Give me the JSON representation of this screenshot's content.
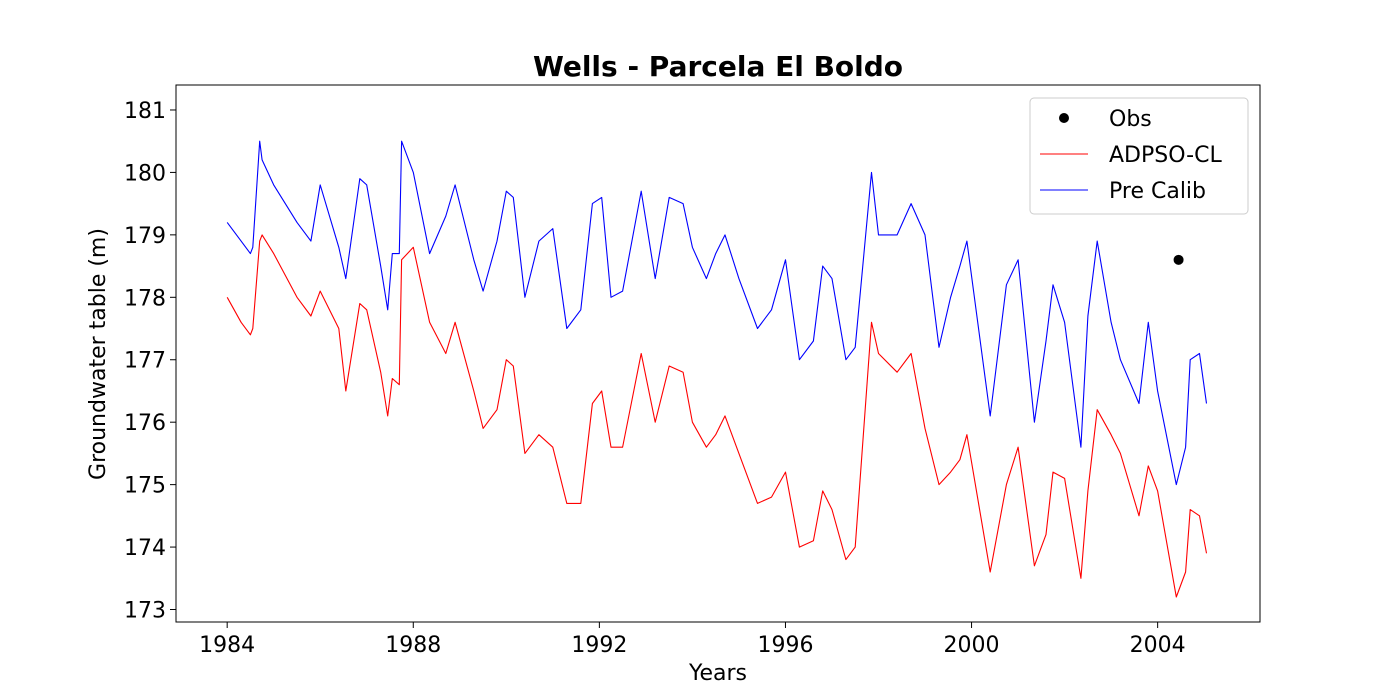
{
  "chart_data": {
    "type": "line",
    "title": "Wells - Parcela El Boldo",
    "xlabel": "Years",
    "ylabel": "Groundwater table (m)",
    "xlim": [
      1982.9,
      2006.2
    ],
    "ylim": [
      172.8,
      181.4
    ],
    "x_ticks": [
      1984,
      1988,
      1992,
      1996,
      2000,
      2004
    ],
    "y_ticks": [
      173,
      174,
      175,
      176,
      177,
      178,
      179,
      180,
      181
    ],
    "grid": false,
    "legend": {
      "position": "top-right"
    },
    "series": [
      {
        "name": "Obs",
        "type": "scatter",
        "color": "#000000",
        "x": [
          2004.45
        ],
        "y": [
          178.6
        ]
      },
      {
        "name": "ADPSO-CL",
        "type": "line",
        "color": "#ff0000",
        "x": [
          1984.0,
          1984.3,
          1984.5,
          1984.55,
          1984.7,
          1984.75,
          1985.0,
          1985.5,
          1985.8,
          1986.0,
          1986.4,
          1986.55,
          1986.85,
          1987.0,
          1987.3,
          1987.45,
          1987.55,
          1987.7,
          1987.75,
          1988.0,
          1988.35,
          1988.7,
          1988.9,
          1989.3,
          1989.5,
          1989.8,
          1990.0,
          1990.15,
          1990.4,
          1990.7,
          1991.0,
          1991.3,
          1991.6,
          1991.85,
          1992.05,
          1992.25,
          1992.5,
          1992.9,
          1993.2,
          1993.5,
          1993.8,
          1994.0,
          1994.3,
          1994.5,
          1994.7,
          1995.0,
          1995.4,
          1995.7,
          1996.0,
          1996.3,
          1996.6,
          1996.8,
          1997.0,
          1997.3,
          1997.5,
          1997.85,
          1998.0,
          1998.4,
          1998.7,
          1999.0,
          1999.3,
          1999.55,
          1999.75,
          1999.9,
          2000.4,
          2000.75,
          2001.0,
          2001.35,
          2001.6,
          2001.75,
          2002.0,
          2002.35,
          2002.5,
          2002.7,
          2003.0,
          2003.2,
          2003.6,
          2003.8,
          2004.0,
          2004.4,
          2004.6,
          2004.7,
          2004.9,
          2005.05
        ],
        "y": [
          178.0,
          177.6,
          177.4,
          177.5,
          178.9,
          179.0,
          178.7,
          178.0,
          177.7,
          178.1,
          177.5,
          176.5,
          177.9,
          177.8,
          176.8,
          176.1,
          176.7,
          176.6,
          178.6,
          178.8,
          177.6,
          177.1,
          177.6,
          176.5,
          175.9,
          176.2,
          177.0,
          176.9,
          175.5,
          175.8,
          175.6,
          174.7,
          174.7,
          176.3,
          176.5,
          175.6,
          175.6,
          177.1,
          176.0,
          176.9,
          176.8,
          176.0,
          175.6,
          175.8,
          176.1,
          175.5,
          174.7,
          174.8,
          175.2,
          174.0,
          174.1,
          174.9,
          174.6,
          173.8,
          174.0,
          177.6,
          177.1,
          176.8,
          177.1,
          175.9,
          175.0,
          175.2,
          175.4,
          175.8,
          173.6,
          175.0,
          175.6,
          173.7,
          174.2,
          175.2,
          175.1,
          173.5,
          174.9,
          176.2,
          175.8,
          175.5,
          174.5,
          175.3,
          174.9,
          173.2,
          173.6,
          174.6,
          174.5,
          173.9
        ]
      },
      {
        "name": "Pre Calib",
        "type": "line",
        "color": "#0000ff",
        "x": [
          1984.0,
          1984.3,
          1984.5,
          1984.55,
          1984.7,
          1984.75,
          1985.0,
          1985.5,
          1985.8,
          1986.0,
          1986.4,
          1986.55,
          1986.85,
          1987.0,
          1987.3,
          1987.45,
          1987.55,
          1987.7,
          1987.75,
          1988.0,
          1988.35,
          1988.7,
          1988.9,
          1989.3,
          1989.5,
          1989.8,
          1990.0,
          1990.15,
          1990.4,
          1990.7,
          1991.0,
          1991.3,
          1991.6,
          1991.85,
          1992.05,
          1992.25,
          1992.5,
          1992.9,
          1993.2,
          1993.5,
          1993.8,
          1994.0,
          1994.3,
          1994.5,
          1994.7,
          1995.0,
          1995.4,
          1995.7,
          1996.0,
          1996.3,
          1996.6,
          1996.8,
          1997.0,
          1997.3,
          1997.5,
          1997.85,
          1998.0,
          1998.4,
          1998.7,
          1999.0,
          1999.3,
          1999.55,
          1999.75,
          1999.9,
          2000.4,
          2000.75,
          2001.0,
          2001.35,
          2001.6,
          2001.75,
          2002.0,
          2002.35,
          2002.5,
          2002.7,
          2003.0,
          2003.2,
          2003.6,
          2003.8,
          2004.0,
          2004.4,
          2004.6,
          2004.7,
          2004.9,
          2005.05
        ],
        "y": [
          179.2,
          178.9,
          178.7,
          178.8,
          180.5,
          180.2,
          179.8,
          179.2,
          178.9,
          179.8,
          178.8,
          178.3,
          179.9,
          179.8,
          178.5,
          177.8,
          178.7,
          178.7,
          180.5,
          180.0,
          178.7,
          179.3,
          179.8,
          178.6,
          178.1,
          178.9,
          179.7,
          179.6,
          178.0,
          178.9,
          179.1,
          177.5,
          177.8,
          179.5,
          179.6,
          178.0,
          178.1,
          179.7,
          178.3,
          179.6,
          179.5,
          178.8,
          178.3,
          178.7,
          179.0,
          178.3,
          177.5,
          177.8,
          178.6,
          177.0,
          177.3,
          178.5,
          178.3,
          177.0,
          177.2,
          180.0,
          179.0,
          179.0,
          179.5,
          179.0,
          177.2,
          178.0,
          178.5,
          178.9,
          176.1,
          178.2,
          178.6,
          176.0,
          177.3,
          178.2,
          177.6,
          175.6,
          177.7,
          178.9,
          177.6,
          177.0,
          176.3,
          177.6,
          176.5,
          175.0,
          175.6,
          177.0,
          177.1,
          176.3
        ]
      }
    ]
  }
}
